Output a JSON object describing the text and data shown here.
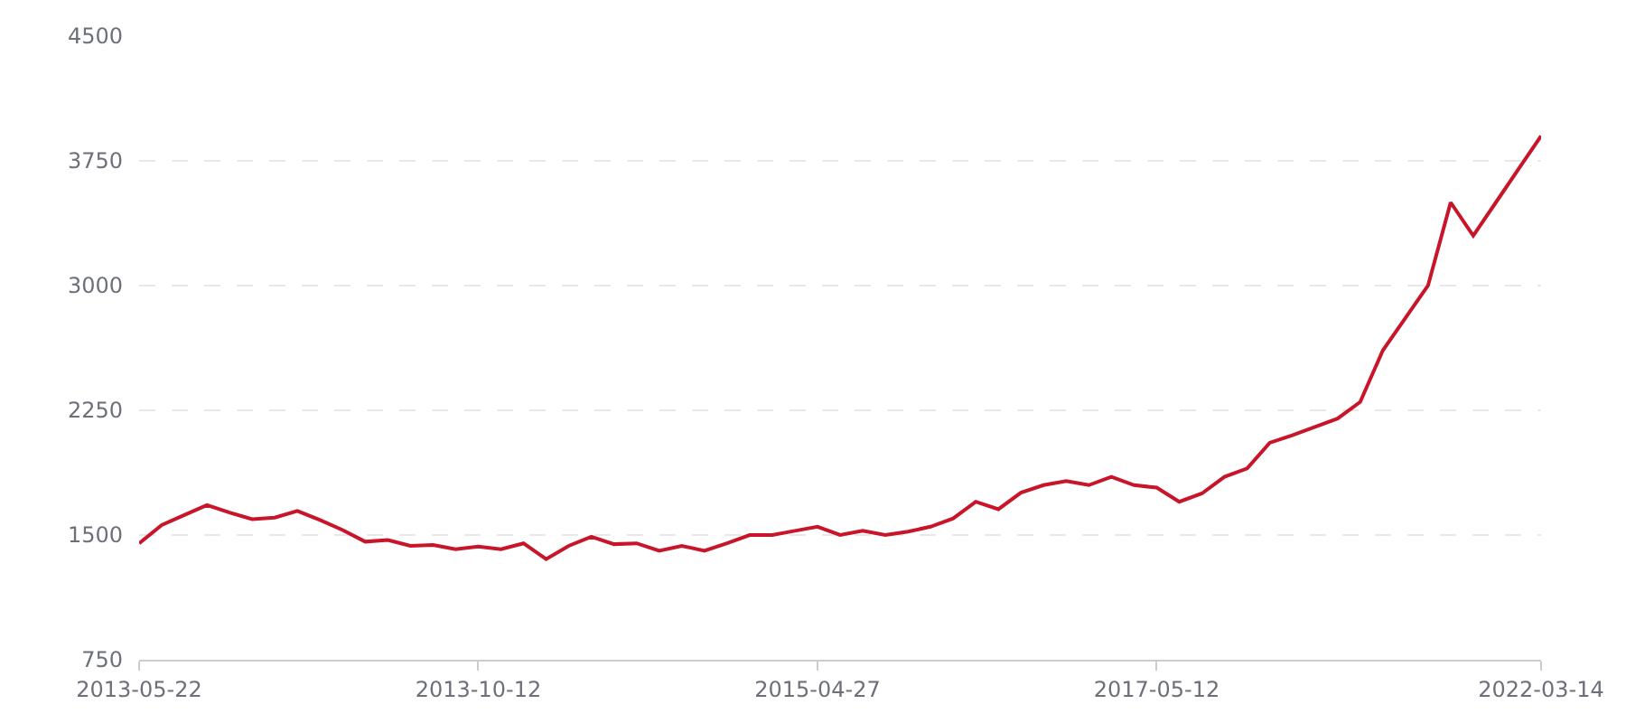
{
  "chart_data": {
    "type": "line",
    "categories": [
      "2013-05-22",
      null,
      null,
      null,
      null,
      null,
      null,
      null,
      null,
      null,
      null,
      null,
      null,
      null,
      null,
      "2013-10-12",
      null,
      null,
      null,
      null,
      null,
      null,
      null,
      null,
      null,
      null,
      null,
      null,
      null,
      null,
      "2015-04-27",
      null,
      null,
      null,
      null,
      null,
      null,
      null,
      null,
      null,
      null,
      null,
      null,
      null,
      null,
      "2017-05-12",
      null,
      null,
      null,
      null,
      null,
      null,
      null,
      null,
      null,
      null,
      null,
      null,
      null,
      null,
      null,
      null,
      "2022-03-14"
    ],
    "values": [
      1450,
      1560,
      1620,
      1680,
      1635,
      1595,
      1605,
      1645,
      1590,
      1530,
      1460,
      1470,
      1435,
      1440,
      1415,
      1430,
      1415,
      1450,
      1355,
      1435,
      1490,
      1445,
      1450,
      1405,
      1435,
      1405,
      1450,
      1500,
      1500,
      1525,
      1550,
      1500,
      1525,
      1500,
      1520,
      1550,
      1600,
      1700,
      1655,
      1755,
      1800,
      1825,
      1800,
      1850,
      1800,
      1785,
      1700,
      1750,
      1850,
      1900,
      2055,
      2100,
      2150,
      2200,
      2300,
      2610,
      2805,
      3000,
      3500,
      3300,
      3500,
      3700,
      3900
    ],
    "color": "#c8152a",
    "ylim": [
      750,
      4500
    ],
    "yticks": [
      750,
      1500,
      2250,
      3000,
      3750,
      4500
    ],
    "grid": "y",
    "marker": "none"
  }
}
